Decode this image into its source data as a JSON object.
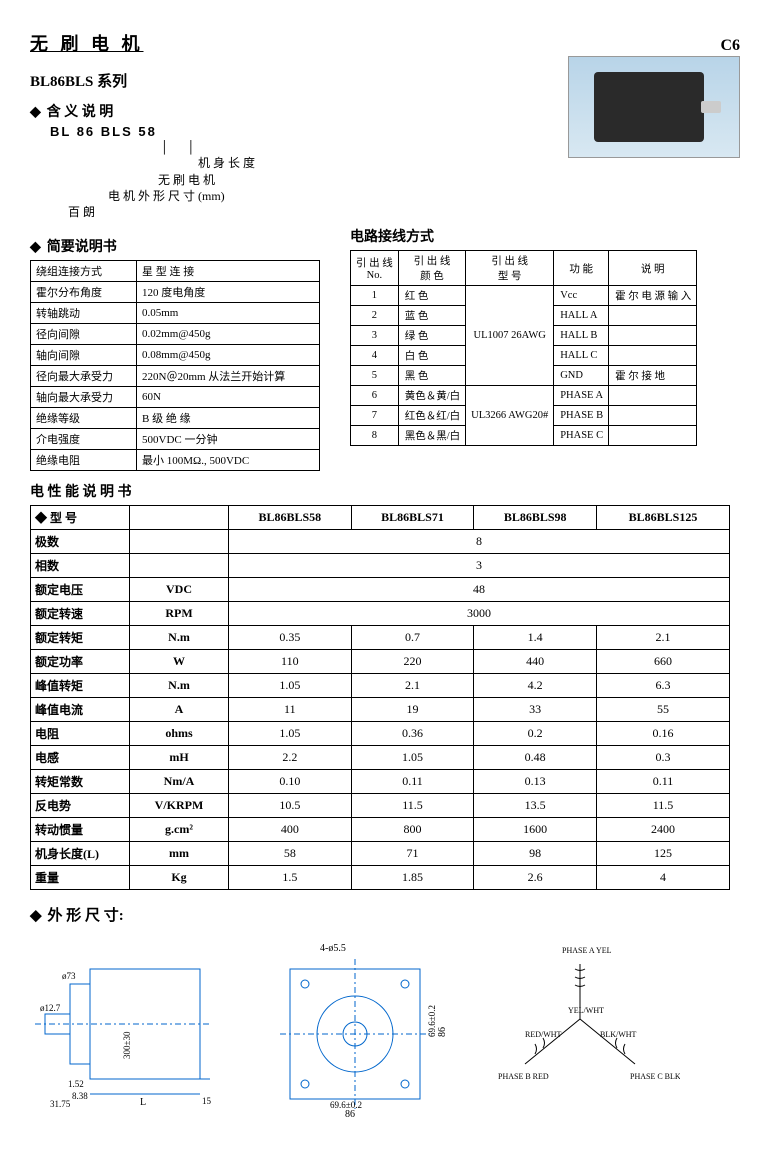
{
  "header": {
    "title": "无 刷 电 机",
    "page_code": "C6"
  },
  "series": {
    "title": "BL86BLS 系列"
  },
  "naming": {
    "heading": "含 义 说 明",
    "code": "BL  86  BLS  58",
    "lines": [
      "机 身 长 度",
      "无 刷 电 机",
      "电 机 外 形 尺 寸 (mm)",
      "百 朗"
    ]
  },
  "brief": {
    "heading": "简要说明书",
    "rows": [
      [
        "绕组连接方式",
        "星 型 连 接"
      ],
      [
        "霍尔分布角度",
        "120 度电角度"
      ],
      [
        "转轴跳动",
        "0.05mm"
      ],
      [
        "径向间隙",
        "0.02mm@450g"
      ],
      [
        "轴向间隙",
        "0.08mm@450g"
      ],
      [
        "径向最大承受力",
        "220N＠20mm 从法兰开始计算"
      ],
      [
        "轴向最大承受力",
        "60N"
      ],
      [
        "绝缘等级",
        "B 级 绝 缘"
      ],
      [
        "介电强度",
        "500VDC 一分钟"
      ],
      [
        "绝缘电阻",
        "最小 100MΩ., 500VDC"
      ]
    ]
  },
  "wiring": {
    "heading": "电路接线方式",
    "head": [
      "引 出 线\nNo.",
      "引 出 线\n颜 色",
      "引 出 线\n型 号",
      "功 能",
      "说 明"
    ],
    "rows": [
      [
        "1",
        "红 色",
        "UL1007 26AWG",
        "Vcc",
        "霍 尔 电 源 输 入"
      ],
      [
        "2",
        "蓝 色",
        "",
        "HALL A",
        ""
      ],
      [
        "3",
        "绿 色",
        "",
        "HALL B",
        ""
      ],
      [
        "4",
        "白 色",
        "",
        "HALL C",
        ""
      ],
      [
        "5",
        "黑 色",
        "",
        "GND",
        "霍 尔 接 地"
      ],
      [
        "6",
        "黄色＆黄/白",
        "UL3266 AWG20#",
        "PHASE A",
        ""
      ],
      [
        "7",
        "红色＆红/白",
        "",
        "PHASE B",
        ""
      ],
      [
        "8",
        "黑色＆黑/白",
        "",
        "PHASE C",
        ""
      ]
    ]
  },
  "perf": {
    "heading": "电 性 能 说 明 书",
    "model_label": "型 号",
    "models": [
      "BL86BLS58",
      "BL86BLS71",
      "BL86BLS98",
      "BL86BLS125"
    ],
    "rows": [
      {
        "label": "极数",
        "unit": "",
        "vals": [
          "8"
        ],
        "span": 4
      },
      {
        "label": "相数",
        "unit": "",
        "vals": [
          "3"
        ],
        "span": 4
      },
      {
        "label": "额定电压",
        "unit": "VDC",
        "vals": [
          "48"
        ],
        "span": 4
      },
      {
        "label": "额定转速",
        "unit": "RPM",
        "vals": [
          "3000"
        ],
        "span": 4
      },
      {
        "label": "额定转矩",
        "unit": "N.m",
        "vals": [
          "0.35",
          "0.7",
          "1.4",
          "2.1"
        ]
      },
      {
        "label": "额定功率",
        "unit": "W",
        "vals": [
          "110",
          "220",
          "440",
          "660"
        ]
      },
      {
        "label": "峰值转矩",
        "unit": "N.m",
        "vals": [
          "1.05",
          "2.1",
          "4.2",
          "6.3"
        ]
      },
      {
        "label": "峰值电流",
        "unit": "A",
        "vals": [
          "11",
          "19",
          "33",
          "55"
        ]
      },
      {
        "label": "电阻",
        "unit": "ohms",
        "vals": [
          "1.05",
          "0.36",
          "0.2",
          "0.16"
        ]
      },
      {
        "label": "电感",
        "unit": "mH",
        "vals": [
          "2.2",
          "1.05",
          "0.48",
          "0.3"
        ]
      },
      {
        "label": "转矩常数",
        "unit": "Nm/A",
        "vals": [
          "0.10",
          "0.11",
          "0.13",
          "0.11"
        ]
      },
      {
        "label": "反电势",
        "unit": "V/KRPM",
        "vals": [
          "10.5",
          "11.5",
          "13.5",
          "11.5"
        ]
      },
      {
        "label": "转动惯量",
        "unit": "g.cm²",
        "vals": [
          "400",
          "800",
          "1600",
          "2400"
        ]
      },
      {
        "label": "机身长度(L)",
        "unit": "mm",
        "vals": [
          "58",
          "71",
          "98",
          "125"
        ]
      },
      {
        "label": "重量",
        "unit": "Kg",
        "vals": [
          "1.5",
          "1.85",
          "2.6",
          "4"
        ]
      }
    ]
  },
  "dims": {
    "heading": "外 形 尺 寸:",
    "side": {
      "d1": "ø12.7",
      "tol1": "0/-0.012",
      "d2": "ø73",
      "tol2": "0/-0.05",
      "a": "1.52",
      "b": "8.38",
      "c": "31.75",
      "L": "L",
      "e": "15",
      "h": "300±30"
    },
    "front": {
      "holes": "4-ø5.5",
      "w": "86",
      "wi": "69.6±0.2",
      "h": "86",
      "hi": "69.6±0.2"
    },
    "phase": {
      "a": "PHASE A\nYEL",
      "b": "PHASE B\nRED",
      "c": "PHASE C\nBLK",
      "yw": "YEL/WHT",
      "rw": "RED/WHT",
      "bw": "BLK/WHT"
    }
  }
}
